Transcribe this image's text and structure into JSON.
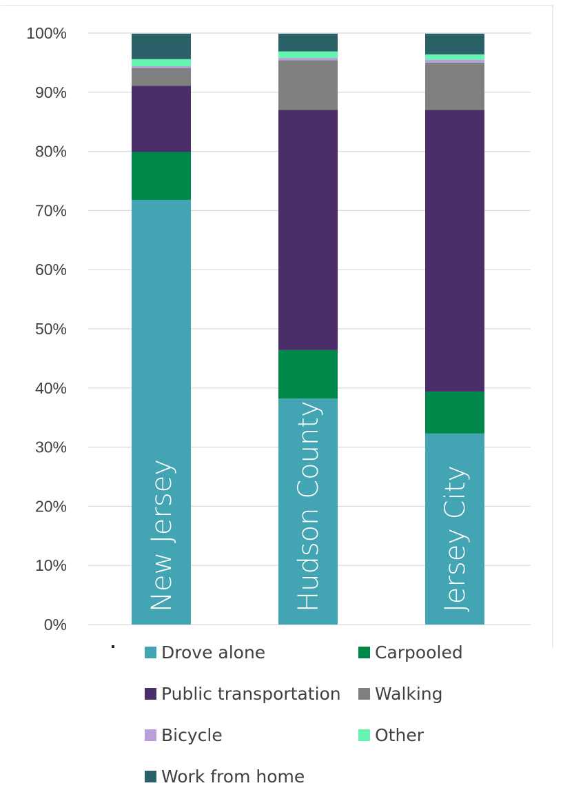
{
  "chart_data": {
    "type": "bar",
    "stacked": true,
    "categories": [
      "New Jersey",
      "Hudson County",
      "Jersey City"
    ],
    "series": [
      {
        "name": "Drove alone",
        "color": "#43A4B3",
        "values": [
          71.8,
          38.2,
          32.3
        ]
      },
      {
        "name": "Carpooled",
        "color": "#00884A",
        "values": [
          8.1,
          8.2,
          7.1
        ]
      },
      {
        "name": "Public transportation",
        "color": "#4B2E69",
        "values": [
          11.2,
          40.6,
          47.6
        ]
      },
      {
        "name": "Walking",
        "color": "#808080",
        "values": [
          3.0,
          8.4,
          8.0
        ]
      },
      {
        "name": "Bicycle",
        "color": "#B9A0DC",
        "values": [
          0.3,
          0.4,
          0.5
        ]
      },
      {
        "name": "Other",
        "color": "#66F5B0",
        "values": [
          1.2,
          1.1,
          0.9
        ]
      },
      {
        "name": "Work from home",
        "color": "#2A6068",
        "values": [
          4.3,
          3.0,
          3.5
        ]
      }
    ],
    "yticks": [
      "0%",
      "10%",
      "20%",
      "30%",
      "40%",
      "50%",
      "60%",
      "70%",
      "80%",
      "90%",
      "100%"
    ],
    "ylim": [
      0,
      100
    ],
    "grid": true,
    "legend_position": "bottom",
    "title": "",
    "xlabel": "",
    "ylabel": ""
  }
}
